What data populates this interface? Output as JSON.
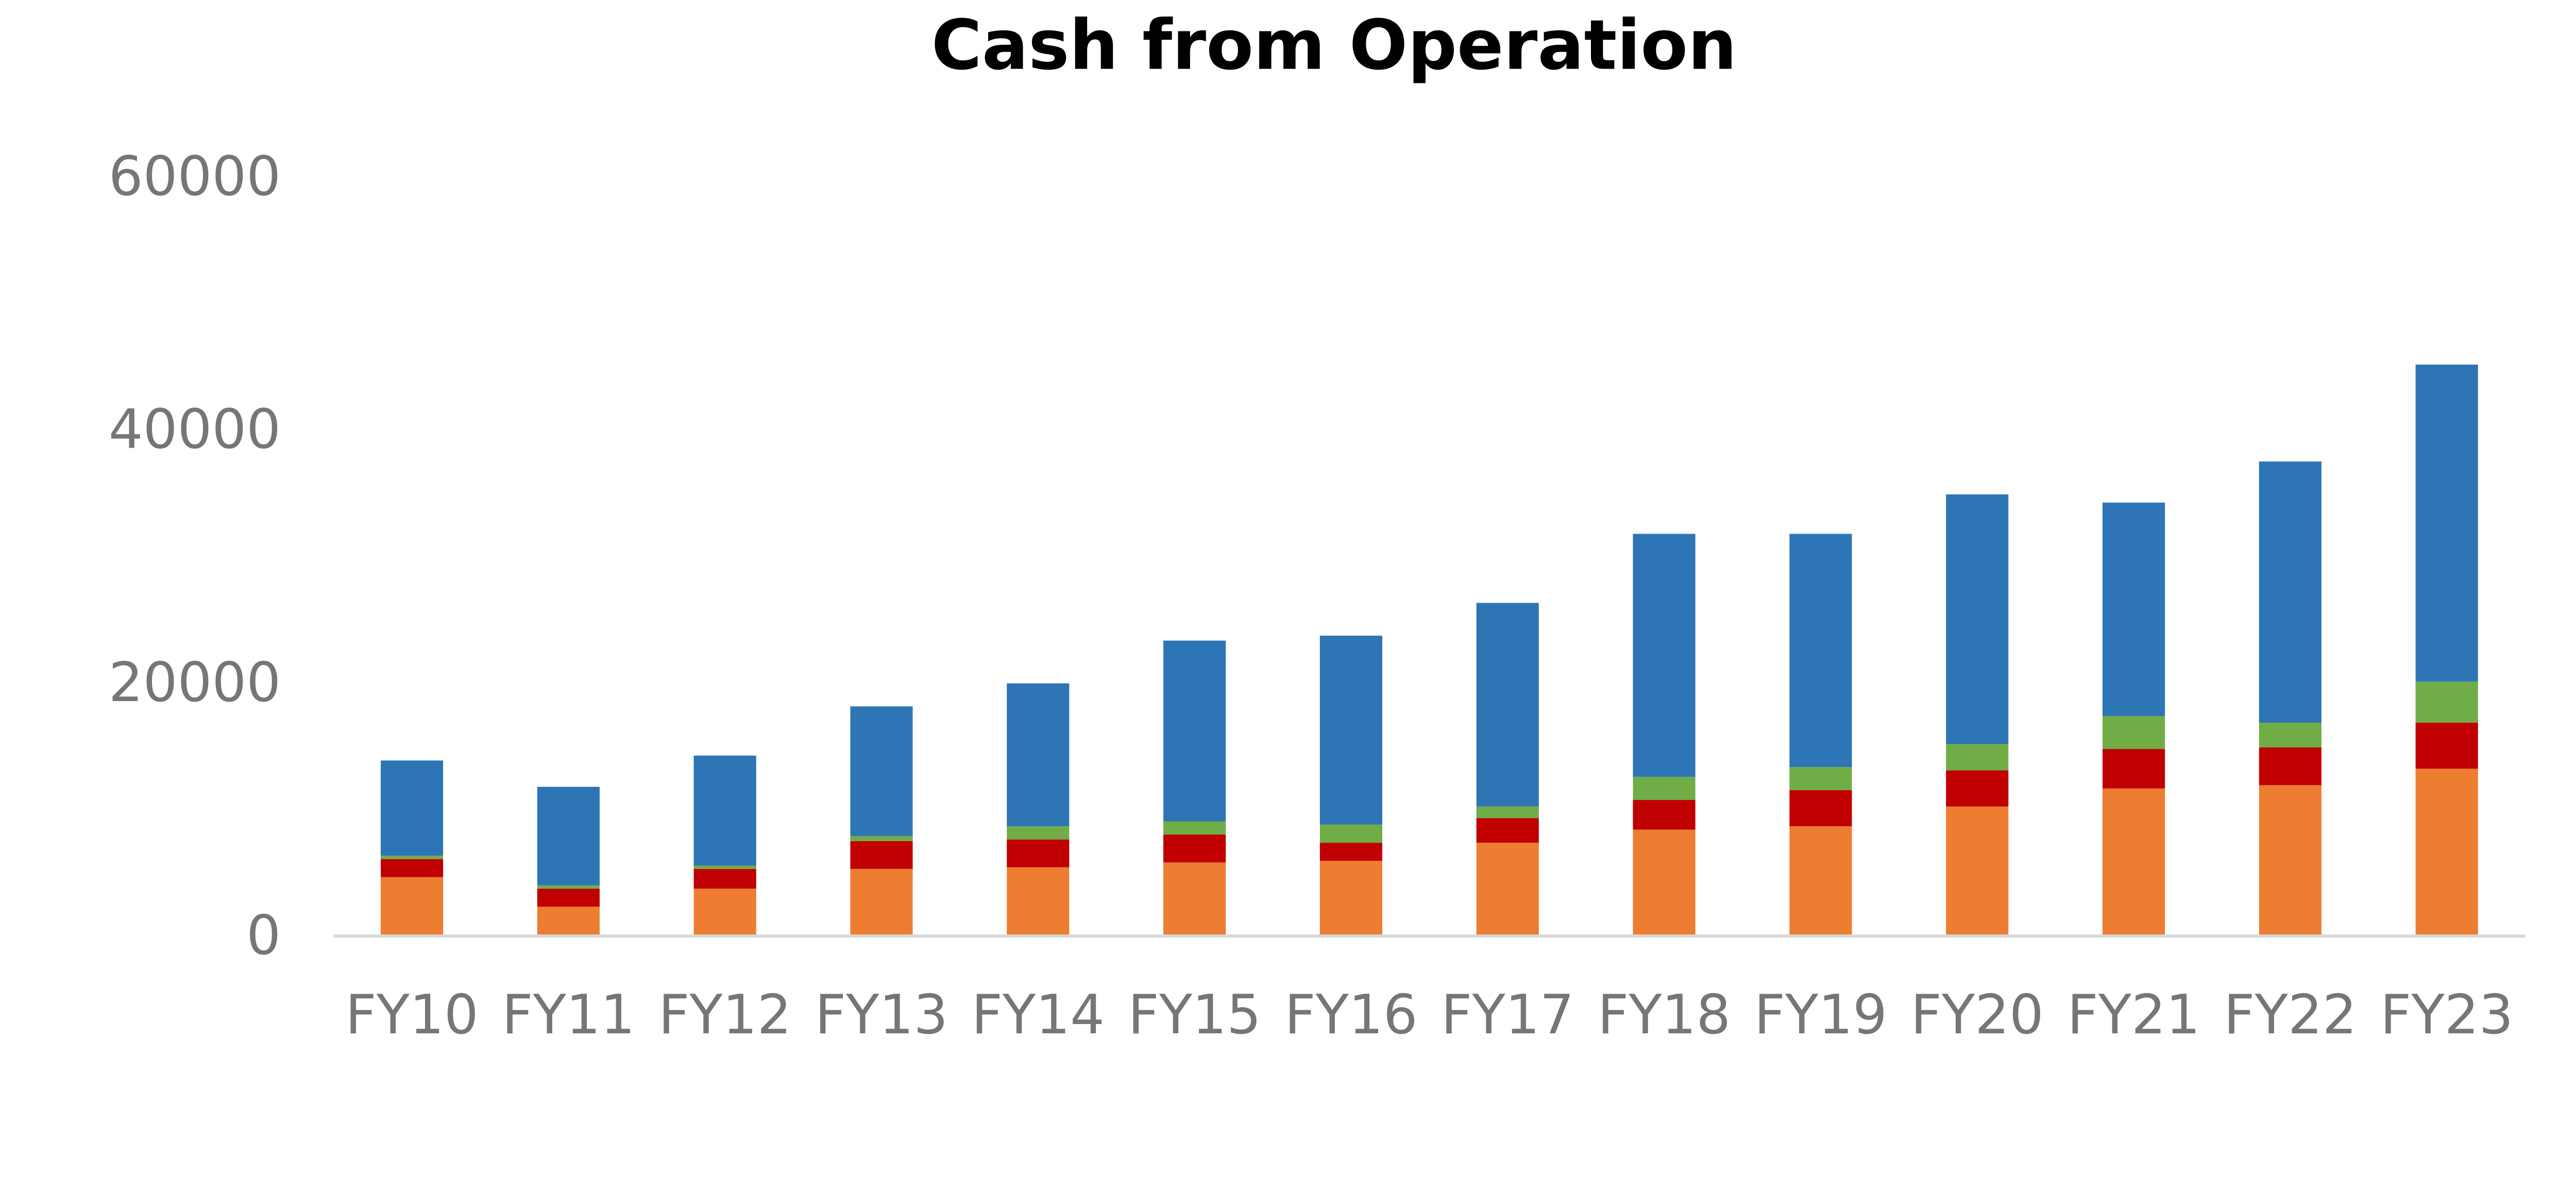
{
  "chart_data": {
    "type": "bar",
    "stacked": true,
    "title": "Cash from Operation",
    "xlabel": "",
    "ylabel": "",
    "ylim": [
      0,
      60000
    ],
    "yticks": [
      0,
      20000,
      40000,
      60000
    ],
    "ytick_labels": [
      "0",
      "20000",
      "40000",
      "60000"
    ],
    "grid": false,
    "legend": "none",
    "categories": [
      "FY10",
      "FY11",
      "FY12",
      "FY13",
      "FY14",
      "FY15",
      "FY16",
      "FY17",
      "FY18",
      "FY19",
      "FY20",
      "FY21",
      "FY22",
      "FY23"
    ],
    "series": [
      {
        "color": "#ED7D31",
        "values": [
          4550,
          2210,
          3640,
          5200,
          5330,
          5710,
          5840,
          7270,
          8310,
          8570,
          10130,
          11560,
          11820,
          13120
        ]
      },
      {
        "color": "#C00000",
        "values": [
          1430,
          1430,
          1560,
          2200,
          2200,
          2210,
          1430,
          1950,
          2340,
          2860,
          2860,
          3120,
          2990,
          3640
        ]
      },
      {
        "color": "#70AD47",
        "values": [
          260,
          260,
          260,
          390,
          1040,
          1040,
          1430,
          910,
          1820,
          1820,
          2080,
          2600,
          1950,
          3250
        ]
      },
      {
        "color": "#2E75B6",
        "values": [
          7530,
          7790,
          8700,
          10260,
          11300,
          14290,
          14940,
          16100,
          19220,
          18440,
          19740,
          16880,
          20650,
          25060
        ]
      }
    ],
    "axis_color": "#D9D9D9",
    "tick_color": "#767676"
  }
}
